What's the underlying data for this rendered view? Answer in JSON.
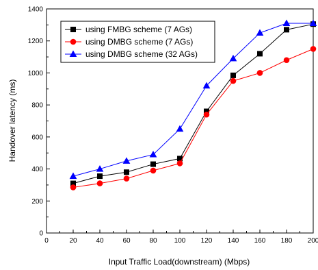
{
  "chart_data": {
    "type": "line",
    "title": "",
    "xlabel": "Input Traffic Load(downstream) (Mbps)",
    "ylabel": "Handover latency (ms)",
    "xlim": [
      0,
      200
    ],
    "ylim": [
      0,
      1400
    ],
    "xticks": [
      0,
      20,
      40,
      60,
      80,
      100,
      120,
      140,
      160,
      180,
      200
    ],
    "yticks": [
      0,
      200,
      400,
      600,
      800,
      1000,
      1200,
      1400
    ],
    "grid": false,
    "legend_position": "top-left",
    "x": [
      20,
      40,
      60,
      80,
      100,
      120,
      140,
      160,
      180,
      200
    ],
    "series": [
      {
        "name": "using FMBG scheme (7 AGs)",
        "color": "#000000",
        "marker": "square",
        "values": [
          310,
          355,
          380,
          430,
          465,
          760,
          985,
          1120,
          1270,
          1305
        ]
      },
      {
        "name": "using DMBG scheme (7 AGs)",
        "color": "#ff0000",
        "marker": "circle",
        "values": [
          285,
          310,
          340,
          390,
          435,
          740,
          950,
          1000,
          1080,
          1150
        ]
      },
      {
        "name": "using DMBG scheme (32 AGs)",
        "color": "#0000ff",
        "marker": "triangle",
        "values": [
          355,
          400,
          450,
          490,
          650,
          920,
          1090,
          1250,
          1310,
          1310
        ]
      }
    ]
  }
}
